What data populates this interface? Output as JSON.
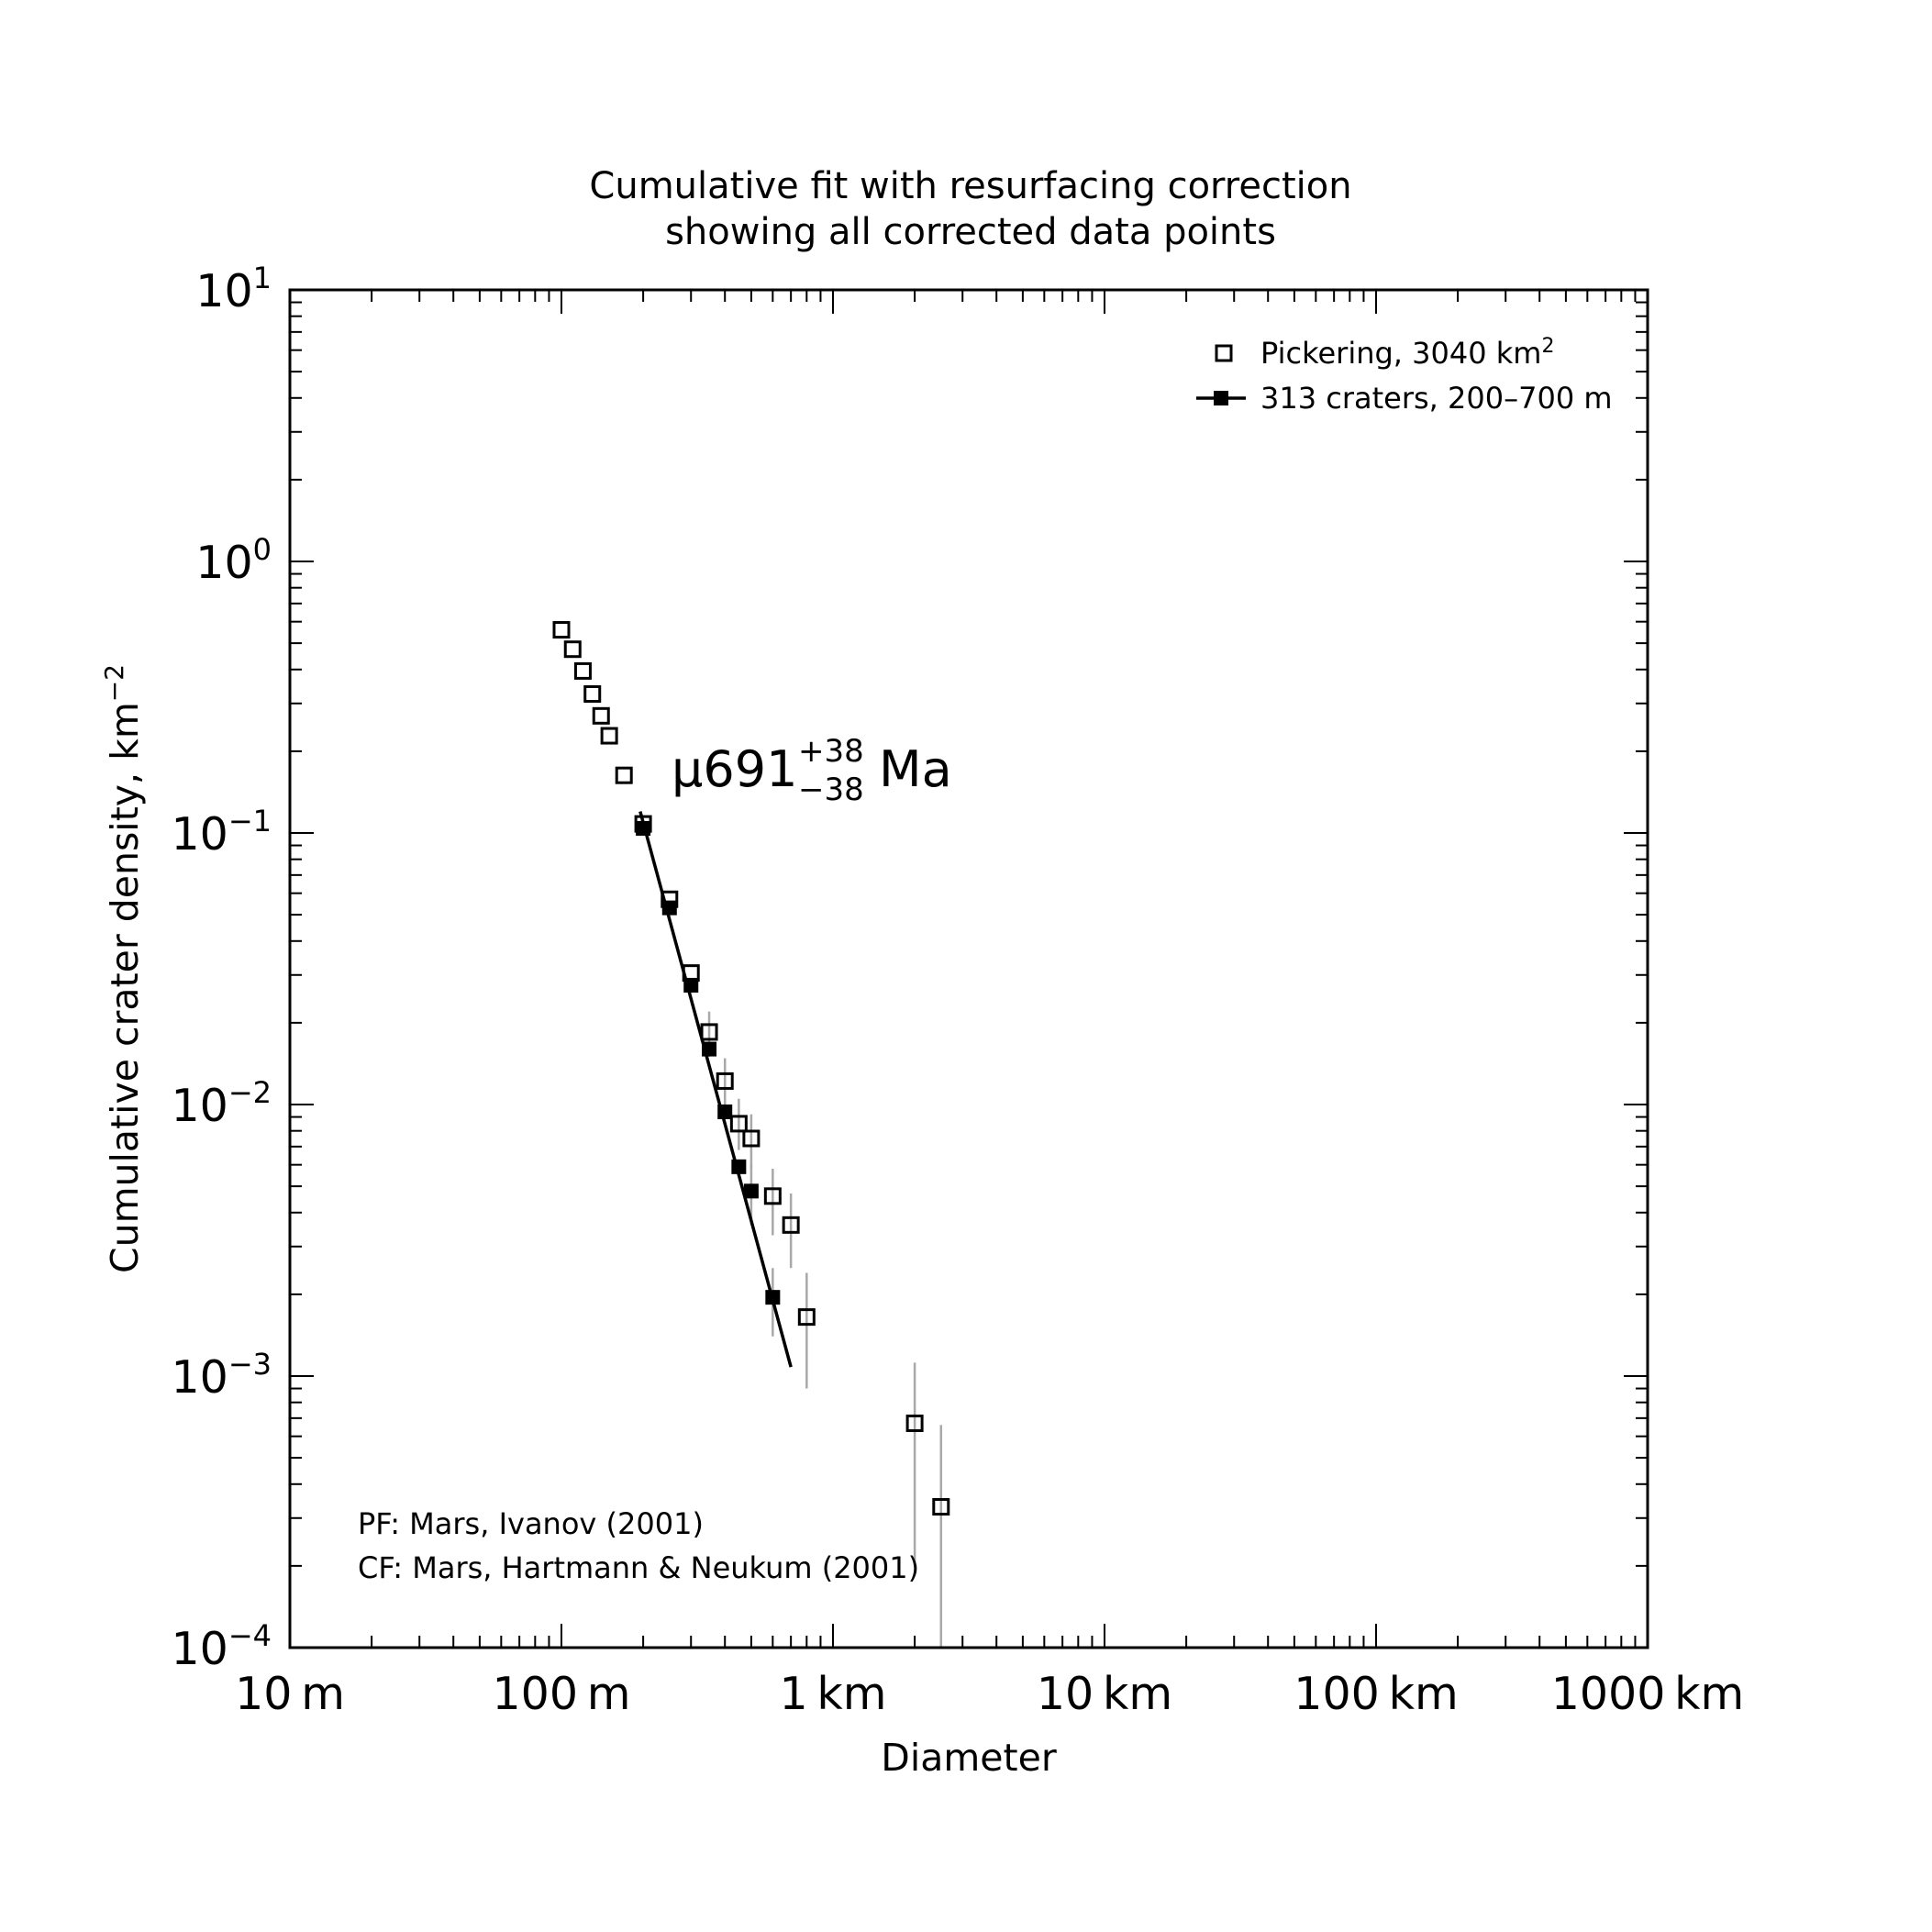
{
  "chart_data": {
    "type": "scatter",
    "title_lines": [
      "Cumulative fit with resurfacing correction",
      "showing all corrected data points"
    ],
    "xlabel": "Diameter",
    "ylabel": "Cumulative crater density, km",
    "ylabel_exp": "−2",
    "x_scale": "log",
    "y_scale": "log",
    "xlim_km": [
      0.01,
      1000
    ],
    "ylim": [
      0.0001,
      10
    ],
    "grid": false,
    "legend_position": "top-right",
    "x_ticks": [
      {
        "value": 0.01,
        "label": "10 m"
      },
      {
        "value": 0.1,
        "label": "100 m"
      },
      {
        "value": 1,
        "label": "1 km"
      },
      {
        "value": 10,
        "label": "10 km"
      },
      {
        "value": 100,
        "label": "100 km"
      },
      {
        "value": 1000,
        "label": "1000 km"
      }
    ],
    "y_ticks": [
      {
        "value": 10,
        "base": "10",
        "exp": "1"
      },
      {
        "value": 1,
        "base": "10",
        "exp": "0"
      },
      {
        "value": 0.1,
        "base": "10",
        "exp": "−1"
      },
      {
        "value": 0.01,
        "base": "10",
        "exp": "−2"
      },
      {
        "value": 0.001,
        "base": "10",
        "exp": "−3"
      },
      {
        "value": 0.0001,
        "base": "10",
        "exp": "−4"
      }
    ],
    "legend": [
      {
        "label": "Pickering, 3040 km",
        "sup": "2",
        "marker": "open-square"
      },
      {
        "label": "313 craters, 200–700 m",
        "marker": "filled-square-line"
      }
    ],
    "age_label": {
      "prefix": "μ691",
      "plus": "+38",
      "minus": "−38",
      "suffix": "Ma"
    },
    "notes": [
      "PF: Mars, Ivanov (2001)",
      "CF: Mars, Hartmann & Neukum (2001)"
    ],
    "series": [
      {
        "name": "Pickering, 3040 km2",
        "marker": "open-square",
        "points": [
          {
            "x": 0.1,
            "y": 0.56
          },
          {
            "x": 0.11,
            "y": 0.475
          },
          {
            "x": 0.12,
            "y": 0.395
          },
          {
            "x": 0.13,
            "y": 0.325
          },
          {
            "x": 0.14,
            "y": 0.27
          },
          {
            "x": 0.15,
            "y": 0.228
          },
          {
            "x": 0.17,
            "y": 0.163
          },
          {
            "x": 0.2,
            "y": 0.108
          },
          {
            "x": 0.25,
            "y": 0.057
          },
          {
            "x": 0.3,
            "y": 0.0305
          },
          {
            "x": 0.35,
            "y": 0.0185,
            "err": [
              0.015,
              0.022
            ]
          },
          {
            "x": 0.4,
            "y": 0.0122,
            "err": [
              0.0098,
              0.0148
            ]
          },
          {
            "x": 0.45,
            "y": 0.0085,
            "err": [
              0.0068,
              0.0105
            ]
          },
          {
            "x": 0.5,
            "y": 0.0075,
            "err": [
              0.0058,
              0.0092
            ]
          },
          {
            "x": 0.6,
            "y": 0.0046,
            "err": [
              0.0033,
              0.0058
            ]
          },
          {
            "x": 0.7,
            "y": 0.0036,
            "err": [
              0.0025,
              0.0047
            ]
          },
          {
            "x": 0.8,
            "y": 0.00165,
            "err": [
              0.0009,
              0.0024
            ]
          },
          {
            "x": 2.0,
            "y": 0.00067,
            "err": [
              0.0002,
              0.00112
            ]
          },
          {
            "x": 2.5,
            "y": 0.00033,
            "err": [
              0.0001,
              0.00066
            ]
          }
        ]
      },
      {
        "name": "313 craters, 200–700 m",
        "marker": "filled-square",
        "points": [
          {
            "x": 0.2,
            "y": 0.104
          },
          {
            "x": 0.25,
            "y": 0.053
          },
          {
            "x": 0.3,
            "y": 0.0275
          },
          {
            "x": 0.35,
            "y": 0.016
          },
          {
            "x": 0.4,
            "y": 0.0094
          },
          {
            "x": 0.45,
            "y": 0.0059
          },
          {
            "x": 0.5,
            "y": 0.0048,
            "err": [
              0.0036,
              0.006
            ]
          },
          {
            "x": 0.6,
            "y": 0.00195,
            "err": [
              0.0014,
              0.0025
            ]
          }
        ]
      },
      {
        "name": "fit",
        "type": "line",
        "points": [
          {
            "x": 0.195,
            "y": 0.12
          },
          {
            "x": 0.7,
            "y": 0.00108
          }
        ]
      }
    ]
  }
}
